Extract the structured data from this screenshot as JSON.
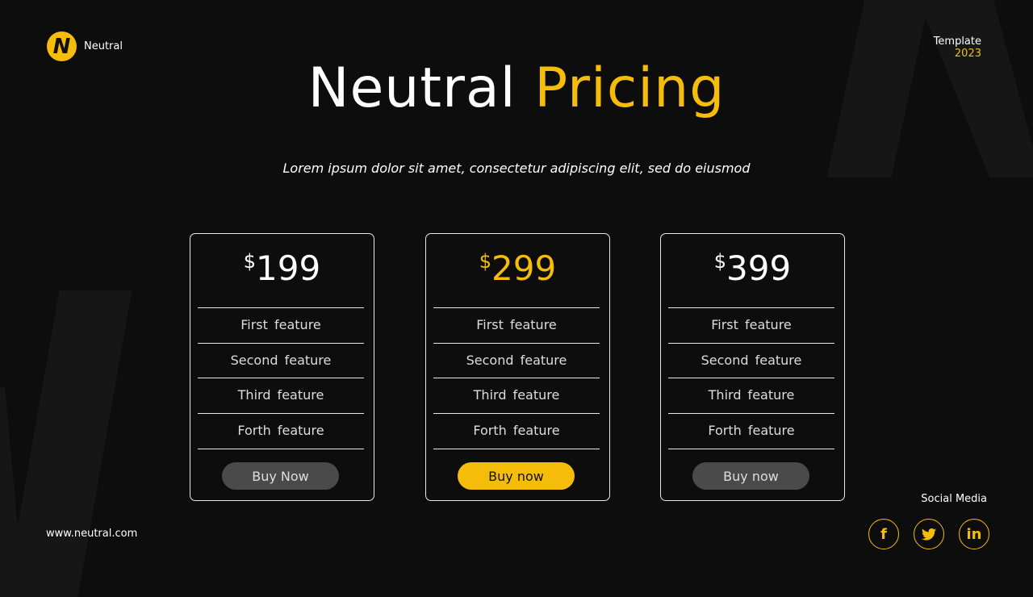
{
  "brand": {
    "name": "Neutral",
    "logo_letter": "N"
  },
  "template": {
    "label": "Template",
    "year": "2023"
  },
  "title": {
    "part1": "Neutral",
    "part2": "Pricing"
  },
  "subtitle": "Lorem ipsum dolor sit amet, consectetur adipiscing elit, sed do eiusmod",
  "accent": "#f5bd0a",
  "plans": [
    {
      "currency": "$",
      "price": "199",
      "features": [
        "First  feature",
        "Second  feature",
        "Third  feature",
        "Forth  feature"
      ],
      "button": "Buy Now",
      "highlighted": false
    },
    {
      "currency": "$",
      "price": "299",
      "features": [
        "First  feature",
        "Second  feature",
        "Third  feature",
        "Forth  feature"
      ],
      "button": "Buy now",
      "highlighted": true
    },
    {
      "currency": "$",
      "price": "399",
      "features": [
        "First  feature",
        "Second  feature",
        "Third  feature",
        "Forth  feature"
      ],
      "button": "Buy now",
      "highlighted": false
    }
  ],
  "footer": {
    "website": "www.neutral.com",
    "social_label": "Social Media",
    "social": [
      {
        "icon": "facebook-icon",
        "glyph": "f"
      },
      {
        "icon": "twitter-icon",
        "glyph": "🐦"
      },
      {
        "icon": "linkedin-icon",
        "glyph": "in"
      }
    ]
  }
}
